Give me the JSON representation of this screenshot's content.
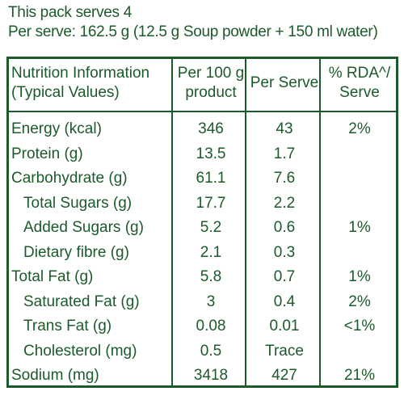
{
  "header": {
    "line1": "This pack serves 4",
    "line2": "Per serve: 162.5 g (12.5 g Soup powder + 150 ml water)"
  },
  "table": {
    "columns": [
      {
        "l1": "Nutrition Information",
        "l2": "(Typical Values)"
      },
      {
        "l1": "Per 100 g",
        "l2": "product"
      },
      {
        "l1": "Per Serve",
        "l2": ""
      },
      {
        "l1": "% RDA^/",
        "l2": "Serve"
      }
    ],
    "rows": [
      {
        "name": "Energy (kcal)",
        "per100": "346",
        "serve": "43",
        "rda": "2%"
      },
      {
        "name": "Protein (g)",
        "per100": "13.5",
        "serve": "1.7",
        "rda": ""
      },
      {
        "name": "Carbohydrate (g)",
        "per100": "61.1",
        "serve": "7.6",
        "rda": ""
      },
      {
        "name": "Total Sugars (g)",
        "per100": "17.7",
        "serve": "2.2",
        "rda": ""
      },
      {
        "name": "Added Sugars (g)",
        "per100": "5.2",
        "serve": "0.6",
        "rda": "1%"
      },
      {
        "name": "Dietary fibre (g)",
        "per100": "2.1",
        "serve": "0.3",
        "rda": ""
      },
      {
        "name": "Total Fat (g)",
        "per100": "5.8",
        "serve": "0.7",
        "rda": "1%"
      },
      {
        "name": "Saturated Fat (g)",
        "per100": "3",
        "serve": "0.4",
        "rda": "2%"
      },
      {
        "name": "Trans Fat (g)",
        "per100": "0.08",
        "serve": "0.01",
        "rda": "<1%"
      },
      {
        "name": "Cholesterol (mg)",
        "per100": "0.5",
        "serve": "Trace",
        "rda": ""
      },
      {
        "name": "Sodium (mg)",
        "per100": "3418",
        "serve": "427",
        "rda": "21%"
      }
    ]
  }
}
